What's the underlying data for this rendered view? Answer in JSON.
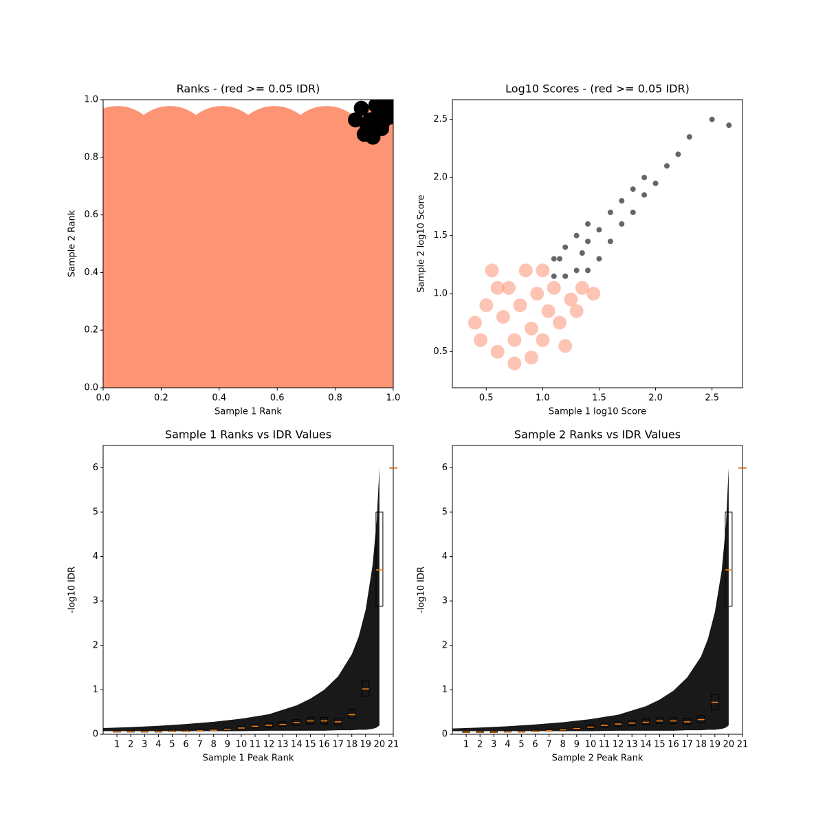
{
  "chart_data": [
    {
      "type": "scatter",
      "title": "Ranks - (red >= 0.05 IDR)",
      "xlabel": "Sample 1 Rank",
      "ylabel": "Sample 2 Rank",
      "xlim": [
        0,
        1
      ],
      "ylim": [
        0,
        1
      ],
      "xticks": [
        {
          "value": 0,
          "label": "0.0"
        },
        0.2,
        0.4,
        0.6,
        0.8,
        {
          "value": 1,
          "label": "1.0"
        }
      ],
      "yticks": [
        {
          "value": 0,
          "label": "0.0"
        },
        0.2,
        0.4,
        0.6,
        0.8,
        {
          "value": 1,
          "label": "1.0"
        }
      ],
      "series": [
        {
          "color": "#fd9474",
          "x": [
            0.05,
            0.23,
            0.41,
            0.59,
            0.77,
            0.95,
            0.05,
            0.23,
            0.41,
            0.59,
            0.77,
            0.95,
            0.05,
            0.23,
            0.41,
            0.59,
            0.77,
            0.95,
            0.05,
            0.23,
            0.41,
            0.59,
            0.77,
            0.95,
            0.05,
            0.23,
            0.41,
            0.59,
            0.77,
            0.95
          ],
          "values": [
            0.06,
            0.06,
            0.06,
            0.06,
            0.06,
            0.06,
            0.27,
            0.27,
            0.27,
            0.27,
            0.27,
            0.27,
            0.48,
            0.48,
            0.48,
            0.48,
            0.48,
            0.48,
            0.69,
            0.69,
            0.69,
            0.69,
            0.69,
            0.69,
            0.83,
            0.83,
            0.83,
            0.83,
            0.83,
            0.83
          ]
        },
        {
          "color": "#000000",
          "x": [
            0.87,
            0.9,
            0.93,
            0.96,
            0.99,
            0.89,
            0.92,
            0.95,
            0.98,
            0.91,
            0.94,
            0.97,
            0.99
          ],
          "values": [
            0.93,
            0.88,
            0.87,
            0.9,
            0.97,
            0.97,
            0.93,
            0.95,
            0.99,
            0.9,
            0.98,
            0.93,
            0.94
          ]
        }
      ]
    },
    {
      "type": "scatter",
      "title": "Log10 Scores - (red >= 0.05 IDR)",
      "xlabel": "Sample 1 log10 Score",
      "ylabel": "Sample 2 log10 Score",
      "xlim": [
        0.2,
        2.77
      ],
      "ylim": [
        0.19,
        2.67
      ],
      "xticks": [
        0.5,
        {
          "value": 1,
          "label": "1.0"
        },
        1.5,
        {
          "value": 2,
          "label": "2.0"
        },
        2.5
      ],
      "yticks": [
        0.5,
        {
          "value": 1,
          "label": "1.0"
        },
        1.5,
        {
          "value": 2,
          "label": "2.0"
        },
        2.5
      ],
      "series": [
        {
          "color": "#fd9474",
          "x": [
            0.45,
            0.5,
            0.55,
            0.6,
            0.65,
            0.7,
            0.75,
            0.8,
            0.85,
            0.9,
            0.9,
            0.95,
            1.0,
            1.05,
            1.1,
            1.15,
            1.2,
            1.25,
            1.3,
            1.35,
            0.6,
            0.75,
            1.0,
            1.45,
            0.4
          ],
          "values": [
            0.6,
            0.9,
            1.2,
            0.5,
            0.8,
            1.05,
            0.6,
            0.9,
            1.2,
            0.45,
            0.7,
            1.0,
            0.6,
            0.85,
            1.05,
            0.75,
            0.55,
            0.95,
            0.85,
            1.05,
            1.05,
            0.4,
            1.2,
            1.0,
            0.75
          ]
        },
        {
          "color": "#000000",
          "x": [
            1.1,
            1.1,
            1.2,
            1.2,
            1.3,
            1.3,
            1.4,
            1.4,
            1.4,
            1.5,
            1.5,
            1.6,
            1.6,
            1.7,
            1.7,
            1.8,
            1.8,
            1.9,
            1.9,
            2.0,
            2.1,
            2.2,
            2.3,
            2.5,
            2.65,
            1.15,
            1.35
          ],
          "values": [
            1.15,
            1.3,
            1.15,
            1.4,
            1.2,
            1.5,
            1.2,
            1.45,
            1.6,
            1.3,
            1.55,
            1.45,
            1.7,
            1.6,
            1.8,
            1.7,
            1.9,
            1.85,
            2.0,
            1.95,
            2.1,
            2.2,
            2.35,
            2.5,
            2.45,
            1.3,
            1.35
          ]
        }
      ]
    },
    {
      "type": "box",
      "title": "Sample 1 Ranks vs IDR Values",
      "xlabel": "Sample 1 Peak Rank",
      "ylabel": "-log10 IDR",
      "xlim": [
        0,
        21
      ],
      "ylim": [
        0,
        6.5
      ],
      "xticks": [
        1,
        2,
        3,
        4,
        5,
        6,
        7,
        8,
        9,
        10,
        11,
        12,
        13,
        14,
        15,
        16,
        17,
        18,
        19,
        20,
        21
      ],
      "yticks": [
        0,
        1,
        2,
        3,
        4,
        5,
        6
      ],
      "scatter": {
        "color": "#000000",
        "x": [
          0,
          2,
          4,
          6,
          8,
          10,
          12,
          14,
          15,
          16,
          17,
          18,
          18.5,
          19,
          19.5,
          19.8,
          20
        ],
        "values": [
          0.14,
          0.16,
          0.19,
          0.23,
          0.28,
          0.35,
          0.45,
          0.65,
          0.8,
          1.0,
          1.3,
          1.8,
          2.2,
          2.8,
          3.8,
          4.8,
          6.0
        ],
        "low": [
          0.07,
          0.07,
          0.07,
          0.07,
          0.07,
          0.07,
          0.08,
          0.08,
          0.08,
          0.08,
          0.09,
          0.09,
          0.1,
          0.1,
          0.12,
          0.15,
          0.2
        ]
      },
      "boxes": {
        "median_color": "#ff7f0e",
        "x": [
          1,
          2,
          3,
          4,
          5,
          6,
          7,
          8,
          9,
          10,
          11,
          12,
          13,
          14,
          15,
          16,
          17,
          18,
          19,
          20,
          21
        ],
        "median": [
          0.06,
          0.06,
          0.06,
          0.06,
          0.07,
          0.07,
          0.08,
          0.09,
          0.11,
          0.14,
          0.18,
          0.2,
          0.22,
          0.26,
          0.3,
          0.3,
          0.28,
          0.44,
          1.02,
          3.7,
          6.0
        ],
        "q1": [
          0.05,
          0.05,
          0.05,
          0.05,
          0.06,
          0.06,
          0.07,
          0.08,
          0.09,
          0.11,
          0.14,
          0.16,
          0.18,
          0.2,
          0.23,
          0.23,
          0.22,
          0.35,
          0.85,
          2.88,
          6.0
        ],
        "q3": [
          0.08,
          0.08,
          0.08,
          0.08,
          0.09,
          0.09,
          0.1,
          0.12,
          0.14,
          0.18,
          0.23,
          0.26,
          0.28,
          0.33,
          0.38,
          0.38,
          0.36,
          0.55,
          1.2,
          5.0,
          6.0
        ]
      }
    },
    {
      "type": "box",
      "title": "Sample 2 Ranks vs IDR Values",
      "xlabel": "Sample 2 Peak Rank",
      "ylabel": "-log10 IDR",
      "xlim": [
        0,
        21
      ],
      "ylim": [
        0,
        6.5
      ],
      "xticks": [
        1,
        2,
        3,
        4,
        5,
        6,
        7,
        8,
        9,
        10,
        11,
        12,
        13,
        14,
        15,
        16,
        17,
        18,
        19,
        20,
        21
      ],
      "yticks": [
        0,
        1,
        2,
        3,
        4,
        5,
        6
      ],
      "scatter": {
        "color": "#000000",
        "x": [
          0,
          2,
          4,
          6,
          8,
          10,
          12,
          14,
          15,
          16,
          17,
          18,
          18.5,
          19,
          19.5,
          19.8,
          20
        ],
        "values": [
          0.13,
          0.15,
          0.18,
          0.22,
          0.27,
          0.34,
          0.44,
          0.63,
          0.78,
          0.98,
          1.28,
          1.75,
          2.15,
          2.75,
          3.7,
          4.7,
          6.0
        ],
        "low": [
          0.07,
          0.07,
          0.07,
          0.07,
          0.07,
          0.07,
          0.08,
          0.08,
          0.08,
          0.08,
          0.09,
          0.09,
          0.1,
          0.1,
          0.12,
          0.15,
          0.2
        ]
      },
      "boxes": {
        "median_color": "#ff7f0e",
        "x": [
          1,
          2,
          3,
          4,
          5,
          6,
          7,
          8,
          9,
          10,
          11,
          12,
          13,
          14,
          15,
          16,
          17,
          18,
          19,
          20,
          21
        ],
        "median": [
          0.05,
          0.05,
          0.05,
          0.06,
          0.06,
          0.07,
          0.08,
          0.1,
          0.13,
          0.16,
          0.2,
          0.23,
          0.25,
          0.27,
          0.3,
          0.3,
          0.28,
          0.33,
          0.72,
          3.7,
          6.0
        ],
        "q1": [
          0.04,
          0.04,
          0.04,
          0.05,
          0.05,
          0.06,
          0.07,
          0.08,
          0.1,
          0.13,
          0.16,
          0.18,
          0.2,
          0.22,
          0.24,
          0.24,
          0.22,
          0.26,
          0.55,
          2.88,
          6.0
        ],
        "q3": [
          0.07,
          0.07,
          0.07,
          0.08,
          0.08,
          0.09,
          0.1,
          0.13,
          0.16,
          0.2,
          0.25,
          0.28,
          0.31,
          0.34,
          0.37,
          0.37,
          0.35,
          0.42,
          0.9,
          5.0,
          6.0
        ]
      }
    }
  ]
}
